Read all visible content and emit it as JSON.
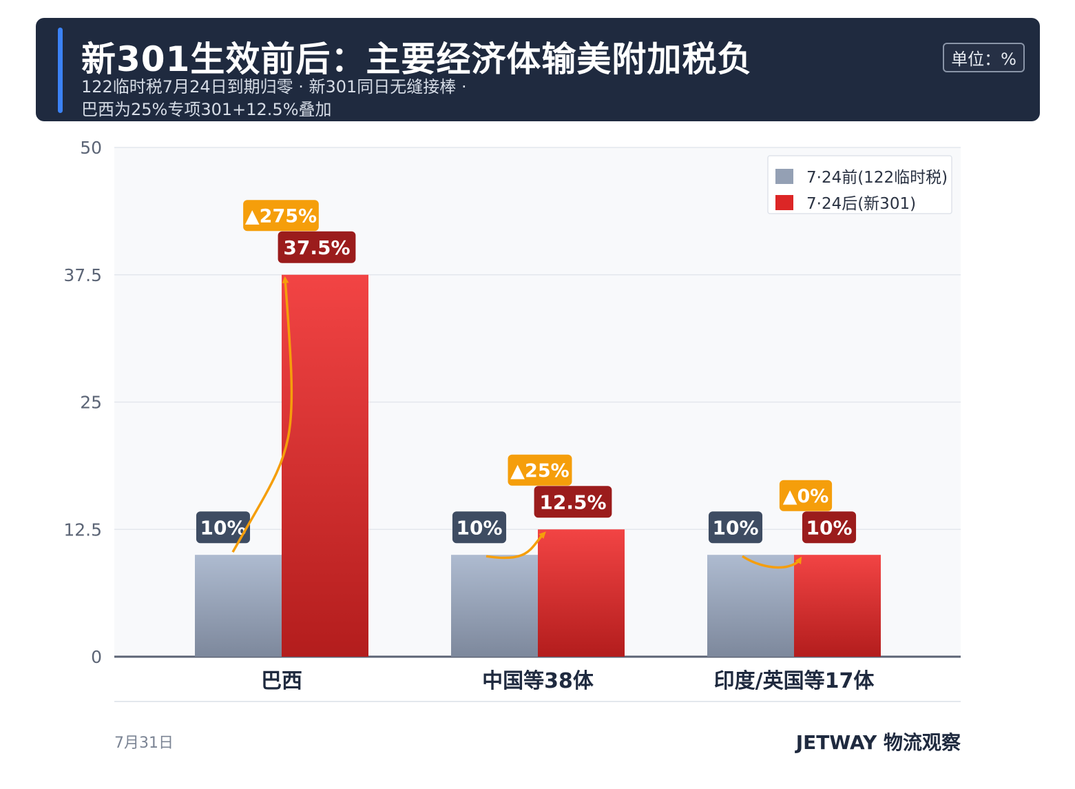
{
  "header": {
    "title": "新301生效前后：主要经济体输美附加税负",
    "subtitle_line1": "122临时税7月24日到期归零 · 新301同日无缝接棒 ·",
    "subtitle_line2": "巴西为25%专项301+12.5%叠加",
    "unit": "单位：%"
  },
  "chart_data": {
    "type": "bar",
    "categories": [
      "巴西",
      "中国等38体",
      "印度/英国等17体"
    ],
    "series": [
      {
        "name": "7·24前(122临时税)",
        "values": [
          10,
          10,
          10
        ],
        "labels": [
          "10%",
          "10%",
          "10%"
        ],
        "color": "#94a0b4"
      },
      {
        "name": "7·24后(新301)",
        "values": [
          37.5,
          12.5,
          10
        ],
        "labels": [
          "37.5%",
          "12.5%",
          "10%"
        ],
        "color": "#dc2626"
      }
    ],
    "change_labels": [
      "▲275%",
      "▲25%",
      "▲0%"
    ],
    "yticks": [
      "0",
      "12.5",
      "25",
      "37.5",
      "50"
    ],
    "ylim": [
      0,
      50
    ],
    "grid": true,
    "legend_position": "top-right",
    "colors": {
      "before_label_bg": "#3e4c62",
      "after_label_bg": "#9b1c1c",
      "change_badge": "#f59e0b",
      "arrow": "#f59e0b"
    }
  },
  "footer": {
    "date": "7月31日",
    "brand": "JETWAY 物流观察"
  }
}
